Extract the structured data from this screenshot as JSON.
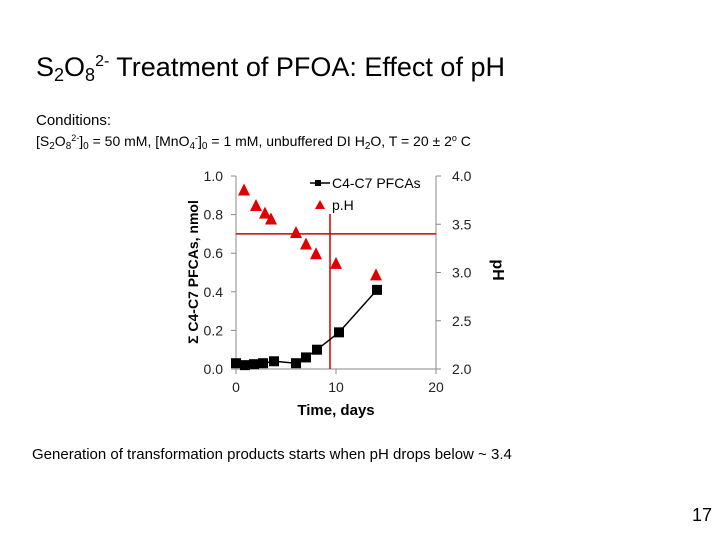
{
  "slide": {
    "title_parts": {
      "s": "S",
      "sub2": "2",
      "o": "O",
      "sub8": "8",
      "charge": "2-",
      "rest": " Treatment of PFOA: Effect of pH"
    },
    "conditions_heading": "Conditions:",
    "conditions_parts": {
      "a": "[S",
      "a_sub2": "2",
      "a_o": "O",
      "a_sub8": "8",
      "a_sup": "2-",
      "a_close": "]",
      "a_sub0": "0",
      "a_val": " = 50 mM, [MnO",
      "b_sub4": "4",
      "b_sup": "-",
      "b_close": "]",
      "b_sub0": "0",
      "rest": " = 1 mM, unbuffered DI H",
      "h_sub2": "2",
      "rest2": "O, T = 20 ± 2",
      "deg": "o",
      "unit": " C"
    },
    "caption": "Generation of transformation products starts when pH drops below ~ 3.4",
    "page_number": "17"
  },
  "chart_data": {
    "type": "scatter",
    "xlabel": "Time, days",
    "ylabel": "Σ C4-C7 PFCAs, nmol",
    "y2label": "pH",
    "xlim": [
      0,
      20
    ],
    "ylim": [
      0,
      1.0
    ],
    "y2lim": [
      2.0,
      4.0
    ],
    "x_ticks": [
      "0",
      "10",
      "20"
    ],
    "y_ticks": [
      "0.0",
      "0.2",
      "0.4",
      "0.6",
      "0.8",
      "1.0"
    ],
    "y2_ticks": [
      "2.0",
      "2.5",
      "3.0",
      "3.5",
      "4.0"
    ],
    "legend_position": "top-right",
    "series": [
      {
        "name": "C4-C7 PFCAs",
        "axis": "left",
        "marker": "square",
        "line": true,
        "color": "#000000",
        "x": [
          0,
          0.9,
          1.8,
          2.7,
          3.8,
          6.0,
          7.0,
          8.1,
          10.3,
          14.1
        ],
        "y": [
          0.03,
          0.02,
          0.025,
          0.03,
          0.04,
          0.03,
          0.06,
          0.1,
          0.19,
          0.41
        ]
      },
      {
        "name": "p.H",
        "axis": "right",
        "marker": "triangle",
        "line": false,
        "color": "#e00000",
        "x": [
          0.8,
          2.0,
          2.9,
          3.5,
          6.0,
          7.0,
          8.0,
          10.0,
          14.0
        ],
        "y": [
          3.86,
          3.7,
          3.62,
          3.56,
          3.42,
          3.3,
          3.2,
          3.1,
          2.98
        ]
      }
    ],
    "reference_lines": [
      {
        "orientation": "vertical",
        "x": 9.4,
        "axis": "left",
        "color": "#cc0000"
      },
      {
        "orientation": "horizontal",
        "y": 3.4,
        "axis": "right",
        "color": "#cc0000"
      }
    ]
  }
}
